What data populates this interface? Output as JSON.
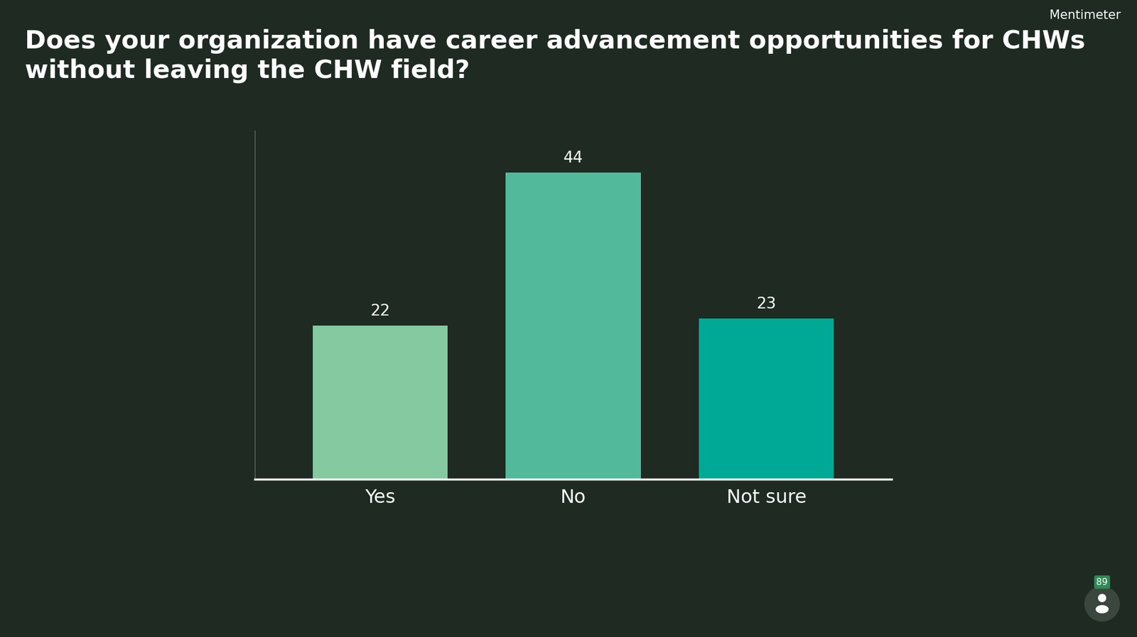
{
  "chart_data": {
    "type": "bar",
    "title": "Does your organization have career advancement opportunities for CHWs without leaving the CHW field?",
    "categories": [
      "Yes",
      "No",
      "Not sure"
    ],
    "values": [
      22,
      44,
      23
    ],
    "colors": [
      "#84c9a0",
      "#52b99a",
      "#00a896"
    ],
    "ylim": [
      0,
      50
    ],
    "yticks": [],
    "grid": false,
    "data_labels": true,
    "tick_labels": "x",
    "annotations": [
      "Mentimeter",
      "89"
    ]
  }
}
